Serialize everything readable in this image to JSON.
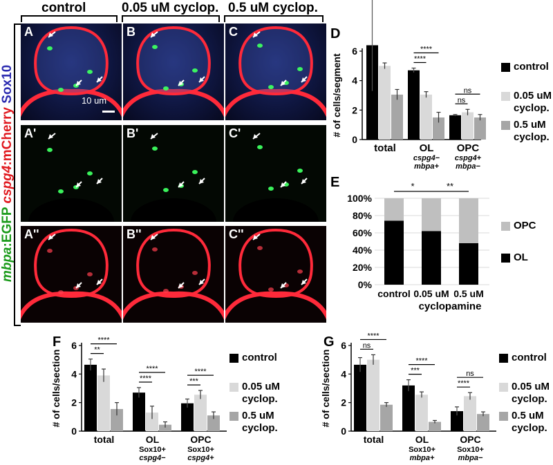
{
  "header": {
    "col1": "control",
    "col2": "0.05 uM cyclop.",
    "col3": "0.5 uM cyclop."
  },
  "row_label": {
    "part1": "mbpa",
    "part2": ":EGFP ",
    "part3": "cspg4",
    "part4": ":mCherry ",
    "part5": "Sox10"
  },
  "micrographs": {
    "labels": [
      "A",
      "B",
      "C",
      "A'",
      "B'",
      "C'",
      "A''",
      "B''",
      "C''"
    ],
    "scale_bar": "10 um"
  },
  "colors": {
    "control": "#000000",
    "low": "#d9d9d9",
    "high": "#a6a6a6",
    "opc_stack": "#bfbfbf",
    "ol_stack": "#000000"
  },
  "chart_data": [
    {
      "panel": "D",
      "type": "bar",
      "ylabel": "# of cells/segment",
      "ylim": [
        0,
        6
      ],
      "yticks": [
        "0",
        "2",
        "4",
        "6"
      ],
      "groups": [
        {
          "label": "total",
          "sub1": "",
          "sub2": ""
        },
        {
          "label": "OL",
          "sub1": "cspg4−",
          "sub2": "mbpa+"
        },
        {
          "label": "OPC",
          "sub1": "cspg4+",
          "sub2": "mbpa−"
        }
      ],
      "series": [
        {
          "name": "control",
          "values": [
            6.4,
            4.7,
            1.65
          ],
          "errors": [
            3.1,
            0.15,
            0.05
          ]
        },
        {
          "name": "0.05 uM cyclop.",
          "values": [
            5.0,
            3.05,
            1.85
          ],
          "errors": [
            0.2,
            0.2,
            0.2
          ]
        },
        {
          "name": "0.5 uM cyclop.",
          "values": [
            3.05,
            1.5,
            1.5
          ],
          "errors": [
            0.35,
            0.35,
            0.2
          ]
        }
      ],
      "significance": [
        "****",
        "**",
        "****",
        "****",
        "ns",
        "ns"
      ],
      "legend": [
        "control",
        "0.05 uM cyclop.",
        "0.5 uM cyclop."
      ]
    },
    {
      "panel": "E",
      "type": "bar",
      "stacked": true,
      "categories": [
        "control",
        "0.05 uM",
        "0.5 uM"
      ],
      "xlabel": "cyclopamine",
      "yticks": [
        "0%",
        "20%",
        "40%",
        "60%",
        "80%",
        "100%"
      ],
      "series": [
        {
          "name": "OL",
          "values": [
            74,
            62,
            48
          ]
        },
        {
          "name": "OPC",
          "values": [
            26,
            38,
            52
          ]
        }
      ],
      "significance": [
        "*",
        "**"
      ],
      "legend": [
        "OPC",
        "OL"
      ]
    },
    {
      "panel": "F",
      "type": "bar",
      "ylabel": "# of cells/section",
      "ylim": [
        0,
        6
      ],
      "yticks": [
        "0",
        "2",
        "4",
        "6"
      ],
      "groups": [
        {
          "label": "total",
          "sub1": "",
          "sub2": ""
        },
        {
          "label": "OL",
          "sub1": "Sox10+",
          "sub2": "cspg4−"
        },
        {
          "label": "OPC",
          "sub1": "Sox10+",
          "sub2": "cspg4+"
        }
      ],
      "series": [
        {
          "name": "control",
          "values": [
            4.65,
            2.7,
            1.95
          ],
          "errors": [
            0.4,
            0.35,
            0.3
          ]
        },
        {
          "name": "0.05 uM cyclop.",
          "values": [
            3.9,
            1.3,
            2.55
          ],
          "errors": [
            0.45,
            0.45,
            0.3
          ]
        },
        {
          "name": "0.5 uM cyclop.",
          "values": [
            1.55,
            0.45,
            1.1
          ],
          "errors": [
            0.45,
            0.2,
            0.25
          ]
        }
      ],
      "significance": [
        "****",
        "**",
        "****",
        "****",
        "****",
        "***"
      ],
      "legend": [
        "control",
        "0.05 uM cyclop.",
        "0.5 uM cyclop."
      ]
    },
    {
      "panel": "G",
      "type": "bar",
      "ylabel": "# of cells/section",
      "ylim": [
        0,
        6
      ],
      "yticks": [
        "0",
        "2",
        "4",
        "6"
      ],
      "groups": [
        {
          "label": "total",
          "sub1": "",
          "sub2": ""
        },
        {
          "label": "OL",
          "sub1": "Sox10+",
          "sub2": "mbpa+"
        },
        {
          "label": "OPC",
          "sub1": "Sox10+",
          "sub2": "mbpa−"
        }
      ],
      "series": [
        {
          "name": "control",
          "values": [
            4.65,
            3.2,
            1.4
          ],
          "errors": [
            0.5,
            0.4,
            0.3
          ]
        },
        {
          "name": "0.05 uM cyclop.",
          "values": [
            5.0,
            2.55,
            2.45
          ],
          "errors": [
            0.35,
            0.2,
            0.25
          ]
        },
        {
          "name": "0.5 uM cyclop.",
          "values": [
            1.85,
            0.65,
            1.2
          ],
          "errors": [
            0.15,
            0.1,
            0.15
          ]
        }
      ],
      "significance": [
        "****",
        "ns",
        "****",
        "***",
        "ns",
        "****"
      ],
      "legend": [
        "control",
        "0.05 uM cyclop.",
        "0.5 uM cyclop."
      ]
    }
  ]
}
